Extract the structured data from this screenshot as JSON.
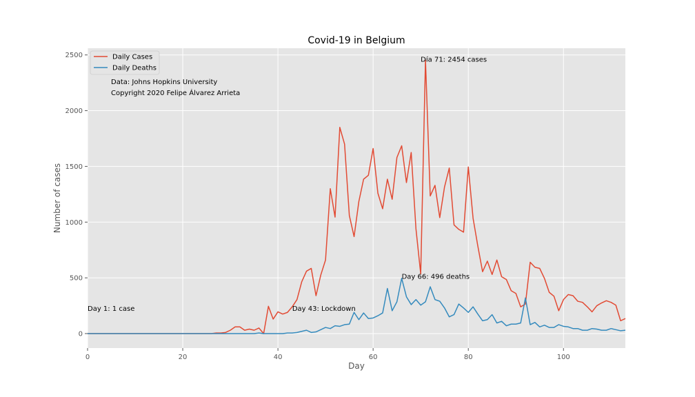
{
  "chart_data": {
    "type": "line",
    "title": "Covid-19 in Belgium",
    "xlabel": "Day",
    "ylabel": "Number of cases",
    "xlim": [
      0,
      113
    ],
    "ylim": [
      -130,
      2560
    ],
    "x_ticks": [
      0,
      20,
      40,
      60,
      80,
      100
    ],
    "y_ticks": [
      0,
      500,
      1000,
      1500,
      2000,
      2500
    ],
    "grid": true,
    "legend_position": "top-left",
    "background_color": "#e5e5e5",
    "grid_color": "#ffffff",
    "series": [
      {
        "name": "Daily Cases",
        "color": "#e24a33",
        "values": [
          0,
          0,
          0,
          0,
          0,
          0,
          0,
          0,
          0,
          0,
          0,
          0,
          0,
          0,
          0,
          0,
          0,
          0,
          0,
          0,
          0,
          0,
          0,
          0,
          0,
          0,
          0,
          5,
          5,
          10,
          30,
          60,
          60,
          30,
          40,
          30,
          50,
          0,
          245,
          130,
          195,
          175,
          190,
          240,
          305,
          465,
          560,
          585,
          340,
          525,
          660,
          1300,
          1045,
          1850,
          1700,
          1060,
          870,
          1185,
          1385,
          1420,
          1660,
          1260,
          1120,
          1385,
          1205,
          1580,
          1685,
          1355,
          1625,
          940,
          535,
          2454,
          1235,
          1330,
          1040,
          1315,
          1485,
          975,
          935,
          910,
          1495,
          1035,
          785,
          555,
          650,
          530,
          660,
          510,
          485,
          385,
          360,
          240,
          265,
          640,
          595,
          585,
          495,
          370,
          335,
          205,
          305,
          350,
          340,
          290,
          280,
          240,
          195,
          250,
          275,
          295,
          280,
          255,
          115,
          135
        ]
      },
      {
        "name": "Daily Deaths",
        "color": "#348abd",
        "values": [
          0,
          0,
          0,
          0,
          0,
          0,
          0,
          0,
          0,
          0,
          0,
          0,
          0,
          0,
          0,
          0,
          0,
          0,
          0,
          0,
          0,
          0,
          0,
          0,
          0,
          0,
          0,
          0,
          0,
          0,
          0,
          0,
          0,
          0,
          0,
          0,
          5,
          0,
          0,
          0,
          0,
          0,
          5,
          5,
          10,
          20,
          30,
          10,
          15,
          35,
          55,
          45,
          70,
          65,
          80,
          85,
          190,
          125,
          185,
          135,
          140,
          160,
          185,
          405,
          205,
          285,
          496,
          330,
          260,
          305,
          255,
          285,
          420,
          305,
          290,
          230,
          150,
          170,
          265,
          230,
          190,
          240,
          175,
          115,
          125,
          170,
          95,
          110,
          70,
          85,
          85,
          95,
          320,
          80,
          100,
          60,
          75,
          55,
          55,
          80,
          65,
          60,
          45,
          45,
          30,
          30,
          45,
          40,
          30,
          30,
          45,
          35,
          25,
          30
        ]
      }
    ],
    "annotations": [
      {
        "text": "Día 71: 2454 cases",
        "x": 70,
        "y": 2440
      },
      {
        "text": "Day 66: 496 deaths",
        "x": 66,
        "y": 490
      },
      {
        "text": "Day 1: 1 case",
        "x": 0,
        "y": 205
      },
      {
        "text": "Day 43: Lockdown",
        "x": 43,
        "y": 205
      }
    ],
    "credits": [
      "Data: Johns Hopkins University",
      "Copyright 2020 Felipe Álvarez Arrieta"
    ]
  }
}
